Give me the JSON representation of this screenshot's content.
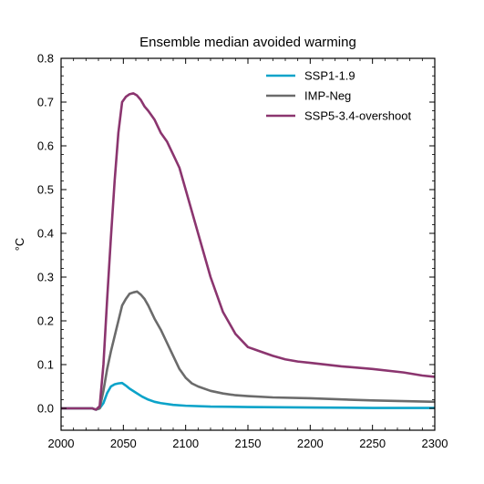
{
  "chart_data": {
    "type": "line",
    "title": "Ensemble median avoided warming",
    "xlabel": "",
    "ylabel": "°C",
    "xlim": [
      2000,
      2300
    ],
    "ylim": [
      -0.05,
      0.8
    ],
    "xticks": [
      "2000",
      "2050",
      "2100",
      "2150",
      "2200",
      "2250",
      "2300"
    ],
    "xtick_values": [
      2000,
      2050,
      2100,
      2150,
      2200,
      2250,
      2300
    ],
    "yticks": [
      "0.0",
      "0.1",
      "0.2",
      "0.3",
      "0.4",
      "0.5",
      "0.6",
      "0.7",
      "0.8"
    ],
    "ytick_values": [
      0.0,
      0.1,
      0.2,
      0.3,
      0.4,
      0.5,
      0.6,
      0.7,
      0.8
    ],
    "legend_position": "top-right",
    "grid": false,
    "series": [
      {
        "name": "SSP1-1.9",
        "color": "#0ba3c9",
        "x": [
          2000,
          2025,
          2028,
          2031,
          2034,
          2037,
          2040,
          2043,
          2046,
          2049,
          2052,
          2055,
          2060,
          2065,
          2070,
          2075,
          2080,
          2090,
          2100,
          2120,
          2150,
          2200,
          2250,
          2300
        ],
        "y": [
          0.0,
          0.0,
          -0.003,
          0.0,
          0.012,
          0.035,
          0.05,
          0.055,
          0.057,
          0.058,
          0.052,
          0.045,
          0.036,
          0.027,
          0.02,
          0.015,
          0.012,
          0.008,
          0.006,
          0.004,
          0.003,
          0.002,
          0.001,
          0.001
        ]
      },
      {
        "name": "IMP-Neg",
        "color": "#6b6b6b",
        "x": [
          2000,
          2025,
          2028,
          2031,
          2034,
          2037,
          2040,
          2043,
          2046,
          2049,
          2052,
          2055,
          2058,
          2061,
          2064,
          2067,
          2070,
          2075,
          2080,
          2085,
          2090,
          2095,
          2100,
          2105,
          2110,
          2120,
          2130,
          2140,
          2150,
          2170,
          2200,
          2250,
          2300
        ],
        "y": [
          0.0,
          0.0,
          -0.003,
          0.0,
          0.04,
          0.09,
          0.13,
          0.165,
          0.2,
          0.235,
          0.25,
          0.262,
          0.265,
          0.267,
          0.26,
          0.25,
          0.235,
          0.205,
          0.18,
          0.15,
          0.12,
          0.09,
          0.07,
          0.057,
          0.05,
          0.04,
          0.034,
          0.03,
          0.028,
          0.025,
          0.023,
          0.018,
          0.015
        ]
      },
      {
        "name": "SSP5-3.4-overshoot",
        "color": "#8b356f",
        "x": [
          2000,
          2025,
          2028,
          2031,
          2034,
          2037,
          2040,
          2043,
          2046,
          2049,
          2052,
          2055,
          2058,
          2061,
          2064,
          2067,
          2070,
          2075,
          2080,
          2085,
          2090,
          2095,
          2100,
          2110,
          2120,
          2130,
          2140,
          2150,
          2160,
          2170,
          2180,
          2190,
          2200,
          2225,
          2250,
          2275,
          2290,
          2300
        ],
        "y": [
          0.0,
          0.0,
          -0.003,
          0.005,
          0.1,
          0.25,
          0.39,
          0.52,
          0.63,
          0.7,
          0.712,
          0.718,
          0.72,
          0.715,
          0.705,
          0.69,
          0.68,
          0.66,
          0.63,
          0.61,
          0.58,
          0.55,
          0.5,
          0.4,
          0.3,
          0.22,
          0.17,
          0.14,
          0.13,
          0.12,
          0.112,
          0.107,
          0.104,
          0.096,
          0.09,
          0.082,
          0.075,
          0.072
        ]
      }
    ]
  }
}
